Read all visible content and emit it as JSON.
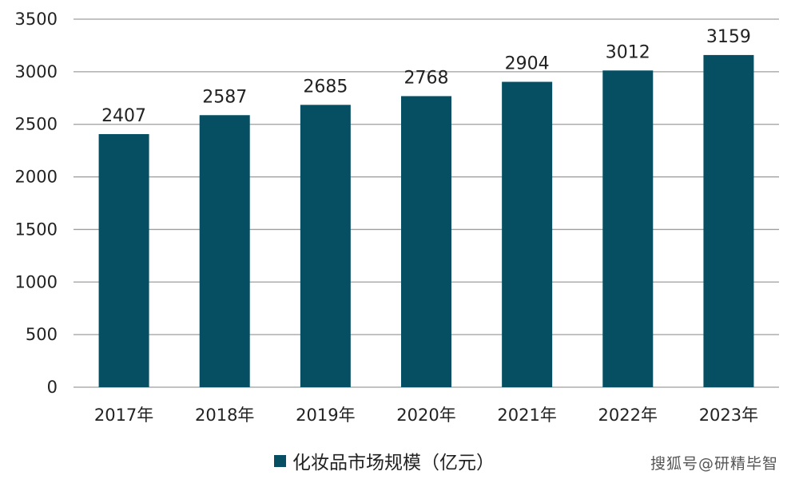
{
  "chart_data": {
    "type": "bar",
    "categories": [
      "2017年",
      "2018年",
      "2019年",
      "2020年",
      "2021年",
      "2022年",
      "2023年"
    ],
    "series": [
      {
        "name": "化妆品市场规模（亿元）",
        "values": [
          2407,
          2587,
          2685,
          2768,
          2904,
          3012,
          3159
        ]
      }
    ],
    "data_labels": [
      "2407",
      "2587",
      "2685",
      "2768",
      "2904",
      "3012",
      "3159"
    ],
    "y_ticks": [
      "0",
      "500",
      "1000",
      "1500",
      "2000",
      "2500",
      "3000",
      "3500"
    ],
    "ylim": [
      0,
      3500
    ],
    "grid": true,
    "legend": "bottom",
    "colors": {
      "bar": "#064f63",
      "grid": "#9e9e9e"
    }
  },
  "watermark": "搜狐号@研精毕智"
}
